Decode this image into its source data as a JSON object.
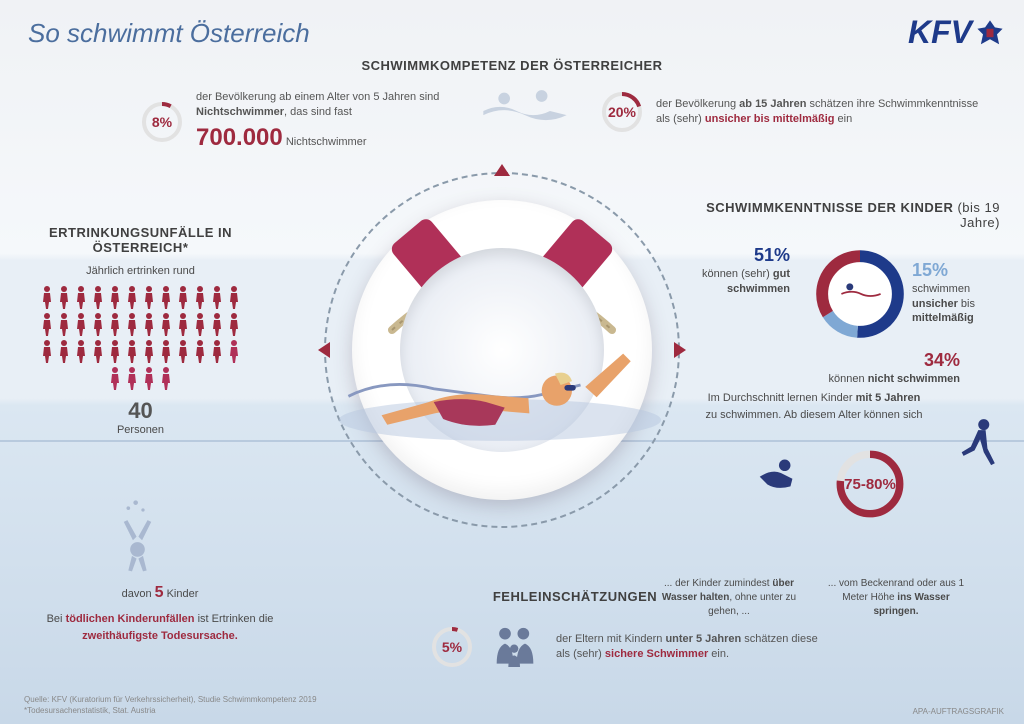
{
  "title": "So schwimmt Österreich",
  "logo": "KFV",
  "colors": {
    "accent": "#9e2a3f",
    "blue": "#1e3a8a",
    "light_blue": "#7fa8d4",
    "grey": "#b8b8b8"
  },
  "competence": {
    "heading": "SCHWIMMKOMPETENZ DER ÖSTERREICHER",
    "left": {
      "pct": "8%",
      "ring_pct": 8,
      "text1": "der Bevölkerung ab einem Alter von 5 Jahren sind ",
      "bold1": "Nichtschwimmer",
      "text2": ", das sind fast",
      "bignum": "700.000",
      "biglab": " Nichtschwimmer"
    },
    "right": {
      "pct": "20%",
      "ring_pct": 20,
      "text1": "der Bevölkerung ",
      "bold1": "ab 15 Jahren",
      "text2": " schätzen ihre Schwimmkenntnisse als (sehr) ",
      "bold2": "unsicher bis mittelmäßig",
      "text3": " ein"
    }
  },
  "drowning": {
    "heading": "ERTRINKUNGSUNFÄLLE IN ÖSTERREICH*",
    "sub": "Jährlich ertrinken rund",
    "total": 40,
    "total_label": "Personen",
    "children_n": "5",
    "children_pre": "davon ",
    "children_post": " Kinder",
    "note1": "Bei ",
    "note_bold1": "tödlichen Kinderunfällen",
    "note2": " ist Ertrinken die ",
    "note_bold2": "zweithäufigste Todesursache."
  },
  "kids": {
    "heading": "SCHWIMMKENNTNISSE DER KINDER",
    "heading_thin": " (bis 19 Jahre)",
    "donut": [
      {
        "pct": "51%",
        "v": 51,
        "color": "#1e3a8a",
        "lab1": "können (sehr) ",
        "lab_b": "gut schwimmen"
      },
      {
        "pct": "15%",
        "v": 15,
        "color": "#7fa8d4",
        "lab1": "schwimmen ",
        "lab_b": "unsicher",
        "lab2": " bis ",
        "lab_b2": "mittelmäßig"
      },
      {
        "pct": "34%",
        "v": 34,
        "color": "#9e2a3f",
        "lab1": "können ",
        "lab_b": "nicht schwimmen"
      }
    ],
    "avg_text1": "Im Durchschnitt lernen Kinder ",
    "avg_bold": "mit 5 Jahren",
    "avg_text2": " zu schwimmen. Ab diesem Alter können sich",
    "ring_val": "75-80%",
    "ring_pct": 77,
    "cap_left1": "... der Kinder zumindest ",
    "cap_left_b": "über Wasser halten",
    "cap_left2": ", ohne unter zu gehen, ...",
    "cap_right1": "... vom Beckenrand oder aus 1 Meter Höhe ",
    "cap_right_b": "ins Wasser springen."
  },
  "misest": {
    "heading": "FEHLEINSCHÄTZUNGEN",
    "pct": "5%",
    "ring_pct": 5,
    "text1": "der Eltern mit Kindern ",
    "bold1": "unter 5 Jahren",
    "text2": " schätzen diese als (sehr) ",
    "bold2": "sichere Schwimmer",
    "text3": " ein."
  },
  "footer": "Quelle: KFV (Kuratorium für Verkehrssicherheit), Studie Schwimmkompetenz 2019\n*Todesursachenstatistik, Stat. Austria",
  "credit": "APA-AUFTRAGSGRAFIK"
}
